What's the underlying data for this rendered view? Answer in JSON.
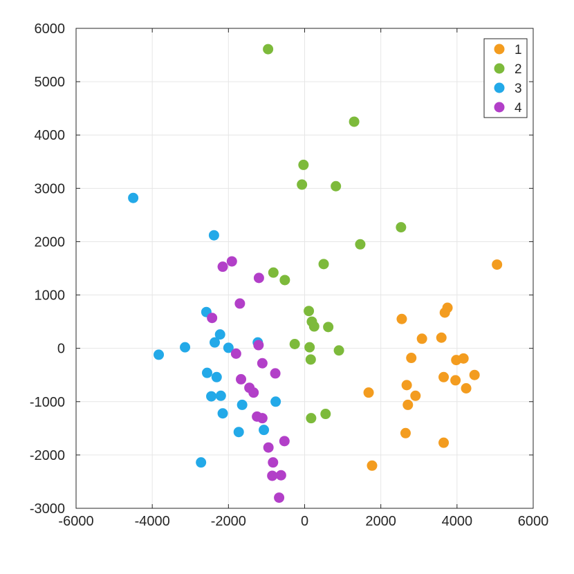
{
  "chart_data": {
    "type": "scatter",
    "title": "",
    "xlabel": "",
    "ylabel": "",
    "xlim": [
      -6000,
      6000
    ],
    "ylim": [
      -3000,
      6000
    ],
    "x_ticks": [
      -6000,
      -4000,
      -2000,
      0,
      2000,
      4000,
      6000
    ],
    "y_ticks": [
      -3000,
      -2000,
      -1000,
      0,
      1000,
      2000,
      3000,
      4000,
      5000,
      6000
    ],
    "grid": true,
    "legend_position": "top-right",
    "series": [
      {
        "name": "1",
        "color": "#f39c1f",
        "points": [
          [
            5050,
            1570
          ],
          [
            3750,
            760
          ],
          [
            3680,
            670
          ],
          [
            2550,
            550
          ],
          [
            3080,
            180
          ],
          [
            3590,
            200
          ],
          [
            4170,
            -190
          ],
          [
            3980,
            -220
          ],
          [
            2800,
            -180
          ],
          [
            4460,
            -500
          ],
          [
            3650,
            -540
          ],
          [
            3960,
            -600
          ],
          [
            4240,
            -750
          ],
          [
            2680,
            -690
          ],
          [
            2910,
            -890
          ],
          [
            1680,
            -830
          ],
          [
            2710,
            -1060
          ],
          [
            2650,
            -1590
          ],
          [
            3650,
            -1770
          ],
          [
            1770,
            -2200
          ]
        ]
      },
      {
        "name": "2",
        "color": "#7dba3b",
        "points": [
          [
            -960,
            5610
          ],
          [
            1300,
            4250
          ],
          [
            -30,
            3440
          ],
          [
            -70,
            3070
          ],
          [
            820,
            3040
          ],
          [
            2530,
            2270
          ],
          [
            1460,
            1950
          ],
          [
            500,
            1580
          ],
          [
            -820,
            1420
          ],
          [
            -520,
            1280
          ],
          [
            110,
            700
          ],
          [
            190,
            500
          ],
          [
            250,
            410
          ],
          [
            620,
            400
          ],
          [
            -260,
            80
          ],
          [
            130,
            20
          ],
          [
            900,
            -40
          ],
          [
            160,
            -210
          ],
          [
            550,
            -1230
          ],
          [
            170,
            -1310
          ]
        ]
      },
      {
        "name": "3",
        "color": "#23a9e8",
        "points": [
          [
            -4500,
            2820
          ],
          [
            -2380,
            2120
          ],
          [
            -2580,
            680
          ],
          [
            -2220,
            260
          ],
          [
            -2360,
            110
          ],
          [
            -1230,
            110
          ],
          [
            -2000,
            10
          ],
          [
            -3140,
            20
          ],
          [
            -3830,
            -120
          ],
          [
            -2560,
            -460
          ],
          [
            -2310,
            -540
          ],
          [
            -2450,
            -900
          ],
          [
            -2200,
            -890
          ],
          [
            -1640,
            -1060
          ],
          [
            -760,
            -1000
          ],
          [
            -2150,
            -1220
          ],
          [
            -1730,
            -1570
          ],
          [
            -1070,
            -1530
          ],
          [
            -2720,
            -2140
          ]
        ]
      },
      {
        "name": "4",
        "color": "#b23fc8",
        "points": [
          [
            -1910,
            1630
          ],
          [
            -2150,
            1530
          ],
          [
            -1200,
            1320
          ],
          [
            -1700,
            840
          ],
          [
            -2430,
            570
          ],
          [
            -1210,
            60
          ],
          [
            -1800,
            -100
          ],
          [
            -1110,
            -280
          ],
          [
            -770,
            -470
          ],
          [
            -1670,
            -580
          ],
          [
            -1450,
            -740
          ],
          [
            -1340,
            -830
          ],
          [
            -1250,
            -1280
          ],
          [
            -1110,
            -1310
          ],
          [
            -530,
            -1740
          ],
          [
            -950,
            -1860
          ],
          [
            -830,
            -2140
          ],
          [
            -850,
            -2390
          ],
          [
            -620,
            -2380
          ],
          [
            -670,
            -2800
          ]
        ]
      }
    ]
  }
}
